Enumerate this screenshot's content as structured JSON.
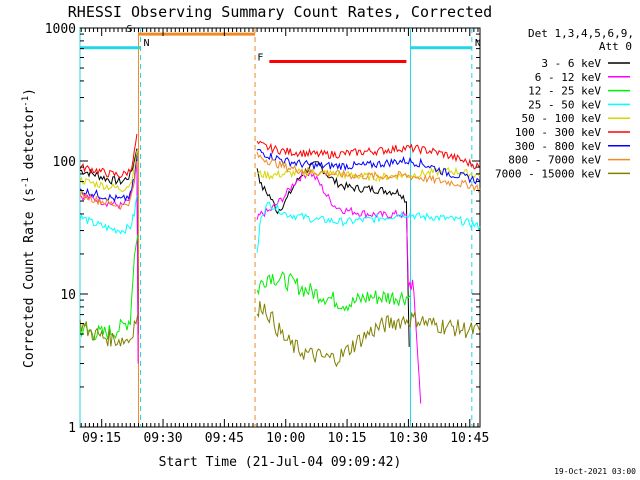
{
  "chart_data": {
    "type": "line",
    "title": "RHESSI Observing Summary Count Rates, Corrected",
    "xlabel": "Start Time (21-Jul-04 09:09:42)",
    "ylabel": "Corrected Count Rate (s⁻¹ detector⁻¹)",
    "ylabel_parts": [
      "Corrected Count Rate (s",
      "-1",
      " detector",
      "-1",
      ")"
    ],
    "y_scale": "log",
    "ylim": [
      1,
      1000
    ],
    "xlim_minutes_after_0900": [
      9.7,
      107.5
    ],
    "x_tick_labels": [
      "09:15",
      "09:30",
      "09:45",
      "10:00",
      "10:15",
      "10:30",
      "10:45"
    ],
    "x_tick_minutes_after_0900": [
      15,
      30,
      45,
      60,
      75,
      90,
      105
    ],
    "y_tick_labels": [
      "1",
      "10",
      "100",
      "1000"
    ],
    "y_tick_values": [
      1,
      10,
      100,
      1000
    ],
    "grid": false,
    "legend_header": [
      "Det 1,3,4,5,6,9,",
      "Att 0"
    ],
    "legend_placement": "right",
    "footer_date": "19-Oct-2021 03:00",
    "markers": [
      {
        "label": "S",
        "type": "SAA",
        "start_minute": 24.0,
        "end_minute": 52.5,
        "color": "#f08a24",
        "level": 900
      },
      {
        "label": "N",
        "type": "Night",
        "start_minute": 9.7,
        "end_minute": 24.5,
        "color": "#22d6e6",
        "level": 710
      },
      {
        "label": "N",
        "type": "Night",
        "start_minute": 90.5,
        "end_minute": 105.5,
        "color": "#22d6e6",
        "level": 710
      },
      {
        "label": "F",
        "type": "Flare",
        "start_minute": 56.0,
        "end_minute": 89.5,
        "color": "#ff0000",
        "level": 560
      }
    ],
    "vertical_lines": [
      {
        "minute": 24.0,
        "color": "#f08a24",
        "style": "solid"
      },
      {
        "minute": 24.5,
        "color": "#22d6e6",
        "style": "dashed"
      },
      {
        "minute": 52.5,
        "color": "#f08a24",
        "style": "dashed"
      },
      {
        "minute": 90.5,
        "color": "#22d6e6",
        "style": "solid"
      },
      {
        "minute": 105.5,
        "color": "#22d6e6",
        "style": "dashed"
      },
      {
        "minute": 9.7,
        "color": "#22d6e6",
        "style": "solid"
      }
    ],
    "series": [
      {
        "name": "3 - 6 keV",
        "color": "#000000",
        "x": [
          9.7,
          13,
          17,
          20,
          22,
          23,
          23.6,
          23.9,
          53,
          54,
          56,
          58,
          60,
          62,
          64,
          66,
          68,
          70,
          72,
          74,
          76,
          78,
          80,
          84,
          88,
          89.5,
          90.2
        ],
        "y": [
          85,
          80,
          72,
          70,
          78,
          100,
          130,
          5,
          90,
          65,
          55,
          42,
          50,
          65,
          80,
          90,
          95,
          80,
          70,
          65,
          63,
          62,
          62,
          60,
          58,
          50,
          4
        ]
      },
      {
        "name": "6 - 12 keV",
        "color": "#ff00ff",
        "x": [
          9.7,
          13,
          17,
          20,
          22,
          23,
          23.6,
          23.9,
          53,
          54,
          56,
          58,
          60,
          62,
          64,
          66,
          68,
          70,
          72,
          74,
          76,
          78,
          80,
          84,
          88,
          89.5,
          90,
          91,
          92,
          93
        ],
        "y": [
          55,
          52,
          48,
          46,
          52,
          70,
          95,
          3,
          36,
          40,
          42,
          48,
          56,
          68,
          78,
          82,
          70,
          55,
          46,
          43,
          42,
          41,
          40,
          39,
          40,
          38,
          12,
          12,
          5,
          1.5
        ]
      },
      {
        "name": "12 - 25 keV",
        "color": "#00ee00",
        "x": [
          9.7,
          12,
          15,
          18,
          20,
          22,
          23,
          23.9,
          53,
          54,
          56,
          58,
          60,
          62,
          64,
          66,
          68,
          70,
          72,
          74,
          76,
          78,
          80,
          82,
          85,
          88,
          89.5,
          90.5
        ],
        "y": [
          5.5,
          5.2,
          5.0,
          5.3,
          5.6,
          6.5,
          20,
          28,
          10.5,
          12,
          14,
          13,
          12.5,
          12,
          11,
          10.5,
          10,
          9.5,
          9,
          8.5,
          8.5,
          9,
          9.5,
          9.5,
          9.5,
          9.5,
          9.5,
          9.5
        ]
      },
      {
        "name": "25 - 50 keV",
        "color": "#00ffff",
        "x": [
          9.7,
          13,
          17,
          20,
          22,
          23,
          23.6,
          53,
          54,
          56,
          58,
          60,
          62,
          64,
          66,
          68,
          70,
          72,
          74,
          76,
          78,
          80,
          82,
          85,
          88,
          90,
          93,
          96,
          99,
          102,
          105,
          107.5
        ],
        "y": [
          38,
          34,
          31,
          30,
          32,
          40,
          55,
          20,
          40,
          48,
          44,
          40,
          39,
          38,
          37,
          36,
          36,
          35,
          35,
          35,
          36,
          36,
          37,
          38,
          40,
          40,
          38,
          38,
          37,
          36,
          34,
          32
        ]
      },
      {
        "name": "50 - 100 keV",
        "color": "#d6d600",
        "x": [
          9.7,
          13,
          17,
          20,
          22,
          23,
          23.6,
          53,
          56,
          60,
          64,
          68,
          72,
          76,
          80,
          84,
          88,
          90,
          93,
          96,
          99,
          102,
          105,
          107.5
        ],
        "y": [
          72,
          68,
          64,
          62,
          67,
          90,
          120,
          80,
          78,
          80,
          82,
          82,
          80,
          78,
          76,
          76,
          78,
          78,
          80,
          82,
          84,
          83,
          80,
          78
        ]
      },
      {
        "name": "100 - 300 keV",
        "color": "#ff0000",
        "x": [
          9.7,
          13,
          17,
          20,
          22,
          23,
          23.6,
          53,
          56,
          60,
          64,
          68,
          72,
          76,
          80,
          84,
          88,
          90,
          93,
          96,
          99,
          102,
          105,
          107.5
        ],
        "y": [
          90,
          86,
          80,
          78,
          85,
          115,
          160,
          135,
          125,
          118,
          115,
          112,
          112,
          115,
          118,
          120,
          125,
          125,
          122,
          118,
          112,
          104,
          96,
          90
        ]
      },
      {
        "name": "300 - 800 keV",
        "color": "#0000ff",
        "x": [
          9.7,
          13,
          17,
          20,
          22,
          23,
          23.6,
          53,
          56,
          60,
          64,
          68,
          72,
          76,
          80,
          84,
          88,
          90,
          93,
          96,
          99,
          102,
          105,
          107.5
        ],
        "y": [
          60,
          57,
          53,
          51,
          55,
          75,
          105,
          120,
          110,
          100,
          95,
          92,
          92,
          92,
          93,
          96,
          100,
          100,
          96,
          90,
          82,
          78,
          74,
          70
        ]
      },
      {
        "name": "800 - 7000 keV",
        "color": "#f08a24",
        "x": [
          9.7,
          13,
          17,
          20,
          22,
          23,
          23.6,
          53,
          56,
          60,
          64,
          68,
          72,
          76,
          80,
          84,
          88,
          90,
          93,
          96,
          99,
          102,
          105,
          107.5
        ],
        "y": [
          56,
          52,
          48,
          46,
          50,
          70,
          100,
          110,
          100,
          90,
          85,
          82,
          80,
          78,
          77,
          77,
          78,
          77,
          75,
          72,
          70,
          68,
          66,
          62
        ]
      },
      {
        "name": "7000 - 15000 keV",
        "color": "#808000",
        "x": [
          9.7,
          12,
          15,
          18,
          20,
          22,
          23,
          23.8,
          53,
          54,
          56,
          58,
          60,
          62,
          64,
          66,
          68,
          70,
          72,
          74,
          76,
          78,
          80,
          82,
          85,
          88,
          90,
          92,
          95,
          98,
          101,
          104,
          107.5
        ],
        "y": [
          6.0,
          5.2,
          4.8,
          4.6,
          4.5,
          4.6,
          6,
          7,
          6.5,
          8.5,
          7,
          5.5,
          4.5,
          4.0,
          3.7,
          3.5,
          3.4,
          3.3,
          3.3,
          3.5,
          4.0,
          4.5,
          5.0,
          5.5,
          6.0,
          6.3,
          6.5,
          6.5,
          6.0,
          5.8,
          5.6,
          5.4,
          5.2
        ]
      }
    ]
  }
}
